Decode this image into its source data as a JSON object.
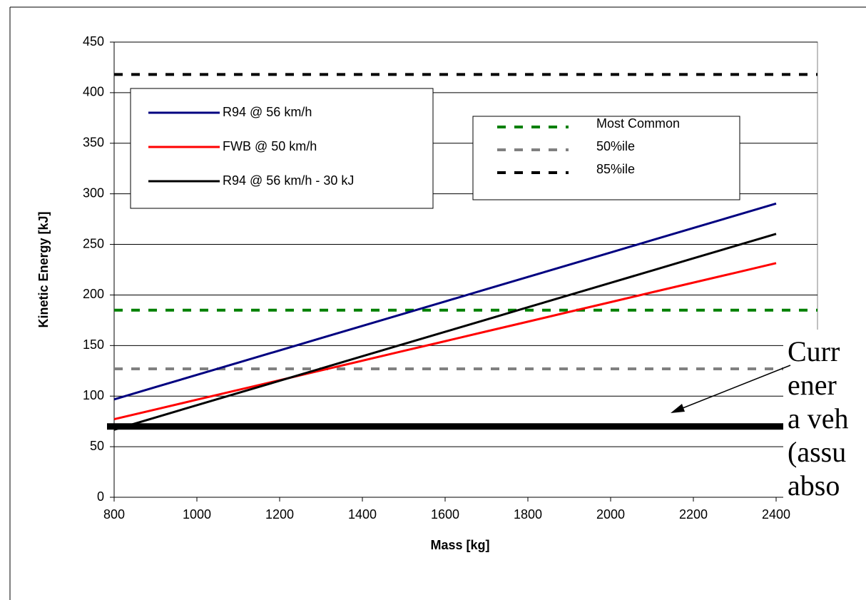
{
  "chart_data": {
    "type": "line",
    "xlabel": "Mass [kg]",
    "ylabel": "Kinetic Energy [kJ]",
    "x": [
      800,
      900,
      1000,
      1100,
      1200,
      1300,
      1400,
      1500,
      1600,
      1700,
      1800,
      1900,
      2000,
      2100,
      2200,
      2300,
      2400
    ],
    "series": [
      {
        "name": "R94 @ 56 km/h",
        "color": "#000080",
        "values": [
          96.8,
          108.9,
          121.0,
          133.1,
          145.2,
          157.3,
          169.4,
          181.5,
          193.6,
          205.7,
          217.8,
          229.9,
          242.0,
          254.1,
          266.2,
          278.3,
          290.4
        ]
      },
      {
        "name": "FWB @ 50 km/h",
        "color": "#ff0000",
        "values": [
          77.2,
          86.8,
          96.5,
          106.1,
          115.7,
          125.4,
          135.0,
          144.7,
          154.3,
          164.0,
          173.6,
          183.3,
          192.9,
          202.6,
          212.2,
          221.8,
          231.5
        ]
      },
      {
        "name": "R94 @ 56 km/h - 30 kJ",
        "color": "#000000",
        "values": [
          66.8,
          78.9,
          91.0,
          103.1,
          115.2,
          127.3,
          139.4,
          151.5,
          163.6,
          175.7,
          187.8,
          199.9,
          212.0,
          224.1,
          236.2,
          248.3,
          260.4
        ]
      }
    ],
    "reference_lines": [
      {
        "name": "Most Common",
        "color": "#008000",
        "value": 185
      },
      {
        "name": "50%ile",
        "color": "#808080",
        "value": 127
      },
      {
        "name": "85%ile",
        "color": "#000000",
        "value": 418
      }
    ],
    "threshold": {
      "value": 70,
      "color": "#000000"
    },
    "annotation": [
      "Curr",
      "ener",
      "a veh",
      "(assu",
      "abso"
    ],
    "xlim": [
      800,
      2500
    ],
    "xticks": [
      800,
      1000,
      1200,
      1400,
      1600,
      1800,
      2000,
      2200,
      2400
    ],
    "ylim": [
      0,
      450
    ],
    "yticks": [
      0,
      50,
      100,
      150,
      200,
      250,
      300,
      350,
      400,
      450
    ],
    "grid": true
  }
}
